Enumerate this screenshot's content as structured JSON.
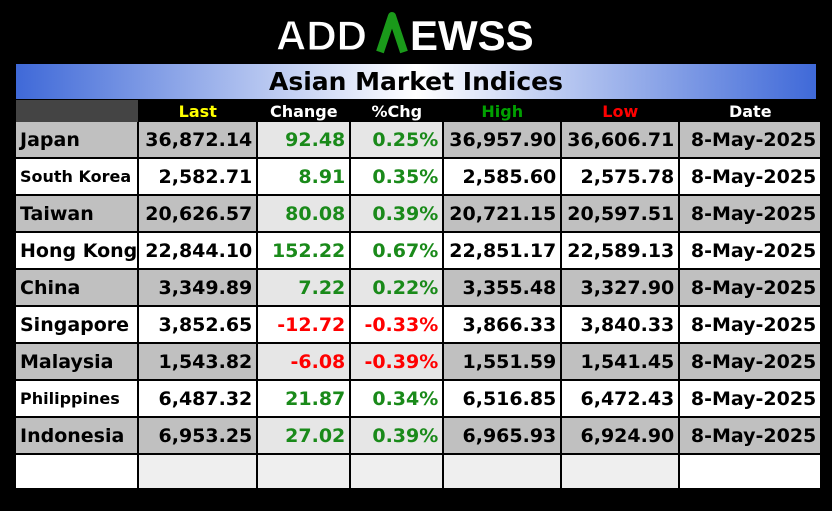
{
  "logo": {
    "pre": "ADD",
    "mid": "N",
    "post": "EWSS"
  },
  "title": "Asian Market Indices",
  "headers": {
    "last": "Last",
    "change": "Change",
    "pctchg": "%Chg",
    "high": "High",
    "low": "Low",
    "date": "Date"
  },
  "colors": {
    "last_header": "#ffff00",
    "high_header": "#00a000",
    "low_header": "#ff0000",
    "positive": "#1a8a1a",
    "negative": "#ff0000"
  },
  "rows": [
    {
      "name": "Japan",
      "last": "36,872.14",
      "change": "92.48",
      "pct": "0.25%",
      "high": "36,957.90",
      "low": "36,606.71",
      "date": "8-May-2025"
    },
    {
      "name": "South Korea",
      "last": "2,582.71",
      "change": "8.91",
      "pct": "0.35%",
      "high": "2,585.60",
      "low": "2,575.78",
      "date": "8-May-2025"
    },
    {
      "name": "Taiwan",
      "last": "20,626.57",
      "change": "80.08",
      "pct": "0.39%",
      "high": "20,721.15",
      "low": "20,597.51",
      "date": "8-May-2025"
    },
    {
      "name": "Hong Kong",
      "last": "22,844.10",
      "change": "152.22",
      "pct": "0.67%",
      "high": "22,851.17",
      "low": "22,589.13",
      "date": "8-May-2025"
    },
    {
      "name": "China",
      "last": "3,349.89",
      "change": "7.22",
      "pct": "0.22%",
      "high": "3,355.48",
      "low": "3,327.90",
      "date": "8-May-2025"
    },
    {
      "name": "Singapore",
      "last": "3,852.65",
      "change": "-12.72",
      "pct": "-0.33%",
      "high": "3,866.33",
      "low": "3,840.33",
      "date": "8-May-2025"
    },
    {
      "name": "Malaysia",
      "last": "1,543.82",
      "change": "-6.08",
      "pct": "-0.39%",
      "high": "1,551.59",
      "low": "1,541.45",
      "date": "8-May-2025"
    },
    {
      "name": "Philippines",
      "last": "6,487.32",
      "change": "21.87",
      "pct": "0.34%",
      "high": "6,516.85",
      "low": "6,472.43",
      "date": "8-May-2025"
    },
    {
      "name": "Indonesia",
      "last": "6,953.25",
      "change": "27.02",
      "pct": "0.39%",
      "high": "6,965.93",
      "low": "6,924.90",
      "date": "8-May-2025"
    }
  ]
}
